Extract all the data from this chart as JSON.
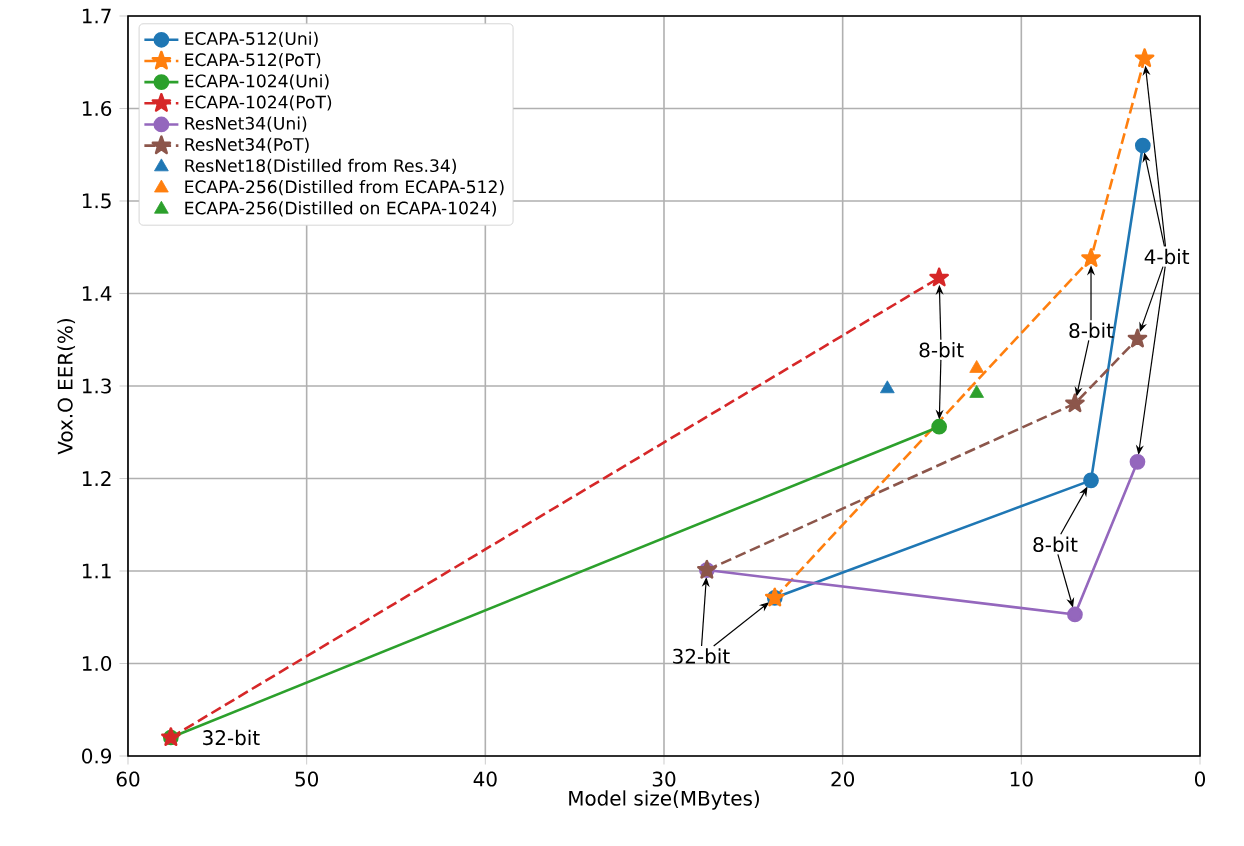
{
  "chart_data": {
    "type": "line",
    "xlabel": "Model size(MBytes)",
    "ylabel": "Vox.O EER(%)",
    "xlim": [
      60,
      0
    ],
    "xticks": [
      60,
      50,
      40,
      30,
      20,
      10,
      0
    ],
    "ylim": [
      0.9,
      1.7
    ],
    "yticks": [
      {
        "value": 0.9,
        "label": "0.9"
      },
      {
        "value": 1.0,
        "label": "1.0"
      },
      {
        "value": 1.1,
        "label": "1.1"
      },
      {
        "value": 1.2,
        "label": "1.2"
      },
      {
        "value": 1.3,
        "label": "1.3"
      },
      {
        "value": 1.4,
        "label": "1.4"
      },
      {
        "value": 1.5,
        "label": "1.5"
      },
      {
        "value": 1.6,
        "label": "1.6"
      },
      {
        "value": 1.7,
        "label": "1.7"
      }
    ],
    "grid": true,
    "legend": "top left",
    "series": [
      {
        "name": "ECAPA-512(Uni)",
        "color": "#1f77b4",
        "marker": "circle",
        "line_style": "solid",
        "x": [
          23.8,
          6.1,
          3.2
        ],
        "values": [
          1.071,
          1.198,
          1.56
        ]
      },
      {
        "name": "ECAPA-512(PoT)",
        "color": "#ff7f0e",
        "marker": "star",
        "line_style": "dashed",
        "x": [
          23.8,
          6.1,
          3.1
        ],
        "values": [
          1.071,
          1.438,
          1.654
        ]
      },
      {
        "name": "ECAPA-1024(Uni)",
        "color": "#2ca02c",
        "marker": "circle",
        "line_style": "solid",
        "x": [
          57.6,
          14.6
        ],
        "values": [
          0.92,
          1.256
        ]
      },
      {
        "name": "ECAPA-1024(PoT)",
        "color": "#d62728",
        "marker": "star",
        "line_style": "dashed",
        "x": [
          57.6,
          14.6
        ],
        "values": [
          0.92,
          1.417
        ]
      },
      {
        "name": "ResNet34(Uni)",
        "color": "#9467bd",
        "marker": "circle",
        "line_style": "solid",
        "x": [
          27.6,
          7.0,
          3.5
        ],
        "values": [
          1.101,
          1.053,
          1.218
        ]
      },
      {
        "name": "ResNet34(PoT)",
        "color": "#8c564b",
        "marker": "star",
        "line_style": "dashed",
        "x": [
          27.6,
          7.0,
          3.5
        ],
        "values": [
          1.101,
          1.281,
          1.351
        ]
      },
      {
        "name": "ResNet18(Distilled from Res.34)",
        "color": "#1f77b4",
        "type": "scatter",
        "marker": "triangle",
        "x": [
          17.5
        ],
        "values": [
          1.297
        ]
      },
      {
        "name": "ECAPA-256(Distilled from ECAPA-512)",
        "color": "#ff7f0e",
        "type": "scatter",
        "marker": "triangle",
        "x": [
          12.5
        ],
        "values": [
          1.319
        ]
      },
      {
        "name": "ECAPA-256(Distilled on ECAPA-1024)",
        "color": "#2ca02c",
        "type": "scatter",
        "marker": "triangle",
        "x": [
          12.5
        ],
        "values": [
          1.292
        ]
      }
    ],
    "annotations": [
      {
        "text": "32-bit",
        "x": 57.6,
        "y": 0.92
      },
      {
        "text": "32-bit",
        "x": 27.6,
        "y": 1.101
      },
      {
        "text": "8-bit",
        "x": 14.6,
        "y": 1.417
      },
      {
        "text": "8-bit",
        "x": 6.1,
        "y": 1.438
      },
      {
        "text": "8-bit",
        "x": 6.1,
        "y": 1.198
      },
      {
        "text": "4-bit",
        "x": 3.1,
        "y": 1.654
      }
    ]
  }
}
